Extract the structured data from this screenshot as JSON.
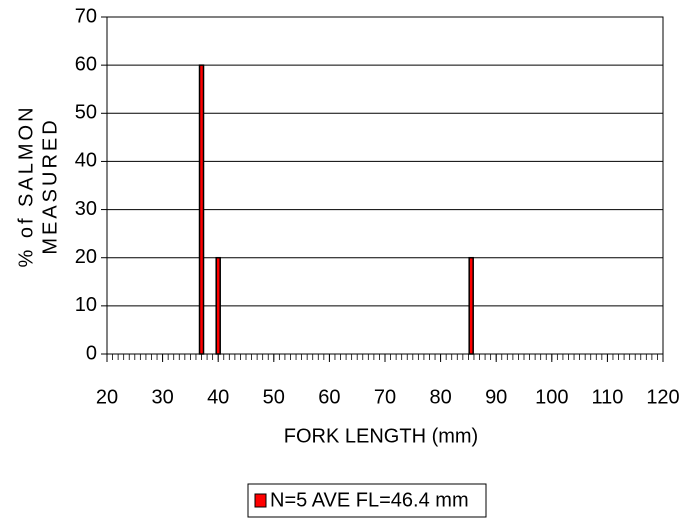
{
  "chart_data": {
    "type": "bar",
    "x": [
      37,
      40,
      85.5
    ],
    "series": [
      {
        "name": "N=5  AVE FL=46.4 mm",
        "color": "#ff0000",
        "values": [
          60,
          20,
          20
        ]
      }
    ],
    "xlabel": "FORK LENGTH (mm)",
    "ylabel": [
      "% of SALMON",
      "MEASURED"
    ],
    "xlim": [
      20,
      120
    ],
    "xticks": [
      20,
      30,
      40,
      50,
      60,
      70,
      80,
      90,
      100,
      110,
      120
    ],
    "x_minor_tick_interval": 1,
    "ylim": [
      0,
      70
    ],
    "yticks": [
      0,
      10,
      20,
      30,
      40,
      50,
      60,
      70
    ],
    "grid": true,
    "legend": "bottom"
  }
}
